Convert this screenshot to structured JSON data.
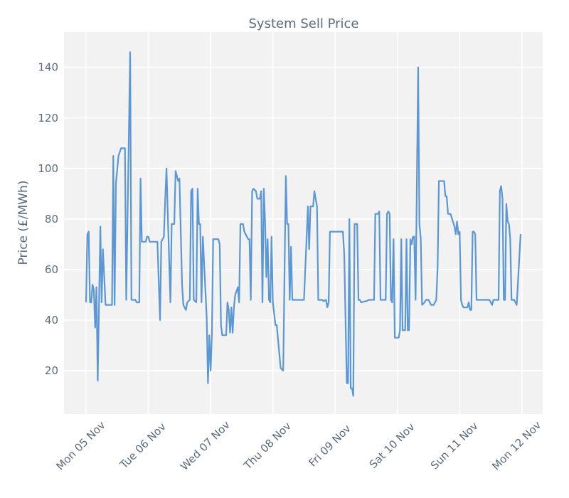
{
  "chart_data": {
    "type": "line",
    "title": "System Sell Price",
    "xlabel": "",
    "ylabel": "Price (£/MWh)",
    "ylim": [
      2.8,
      154
    ],
    "xlim": [
      "04 Nov 15:30",
      "12 Nov 08:00"
    ],
    "grid": true,
    "legend": "none",
    "colors": {
      "line": "#5b97d5",
      "plot_bg": "#f2f2f2",
      "grid": "#ffffff",
      "text": "#5a6b7d"
    },
    "yticks": [
      20,
      40,
      60,
      80,
      100,
      120,
      140
    ],
    "xticks": [
      {
        "t": "05 Nov 00:00",
        "label": "Mon 05 Nov"
      },
      {
        "t": "06 Nov 00:00",
        "label": "Tue 06 Nov"
      },
      {
        "t": "07 Nov 00:00",
        "label": "Wed 07 Nov"
      },
      {
        "t": "08 Nov 00:00",
        "label": "Thu 08 Nov"
      },
      {
        "t": "09 Nov 00:00",
        "label": "Fri 09 Nov"
      },
      {
        "t": "10 Nov 00:00",
        "label": "Sat 10 Nov"
      },
      {
        "t": "11 Nov 00:00",
        "label": "Sun 11 Nov"
      },
      {
        "t": "12 Nov 00:00",
        "label": "Mon 12 Nov"
      }
    ],
    "series": [
      {
        "points": [
          [
            "05 Nov 00:00",
            47
          ],
          [
            "05 Nov 00:30",
            74
          ],
          [
            "05 Nov 01:00",
            75
          ],
          [
            "05 Nov 01:30",
            47
          ],
          [
            "05 Nov 02:00",
            47
          ],
          [
            "05 Nov 02:30",
            54
          ],
          [
            "05 Nov 03:00",
            52
          ],
          [
            "05 Nov 03:30",
            37
          ],
          [
            "05 Nov 04:00",
            53
          ],
          [
            "05 Nov 04:30",
            16
          ],
          [
            "05 Nov 05:30",
            77
          ],
          [
            "05 Nov 06:00",
            47
          ],
          [
            "05 Nov 06:30",
            68
          ],
          [
            "05 Nov 07:30",
            46
          ],
          [
            "05 Nov 10:00",
            46
          ],
          [
            "05 Nov 10:30",
            105
          ],
          [
            "05 Nov 11:00",
            46
          ],
          [
            "05 Nov 11:30",
            94
          ],
          [
            "05 Nov 12:30",
            105
          ],
          [
            "05 Nov 13:30",
            108
          ],
          [
            "05 Nov 15:00",
            108
          ],
          [
            "05 Nov 15:30",
            48
          ],
          [
            "05 Nov 17:00",
            146
          ],
          [
            "05 Nov 17:30",
            48
          ],
          [
            "05 Nov 19:00",
            48
          ],
          [
            "05 Nov 19:30",
            47
          ],
          [
            "05 Nov 20:30",
            47
          ],
          [
            "05 Nov 21:00",
            96
          ],
          [
            "05 Nov 21:30",
            71
          ],
          [
            "05 Nov 23:00",
            71
          ],
          [
            "05 Nov 23:30",
            73
          ],
          [
            "06 Nov 00:00",
            73
          ],
          [
            "06 Nov 00:30",
            71
          ],
          [
            "06 Nov 03:30",
            71
          ],
          [
            "06 Nov 04:30",
            40
          ],
          [
            "06 Nov 05:00",
            71
          ],
          [
            "06 Nov 06:00",
            73
          ],
          [
            "06 Nov 06:30",
            88
          ],
          [
            "06 Nov 07:00",
            100
          ],
          [
            "06 Nov 07:30",
            82
          ],
          [
            "06 Nov 08:30",
            47
          ],
          [
            "06 Nov 09:00",
            78
          ],
          [
            "06 Nov 10:00",
            78
          ],
          [
            "06 Nov 10:30",
            99
          ],
          [
            "06 Nov 11:30",
            95
          ],
          [
            "06 Nov 12:00",
            96
          ],
          [
            "06 Nov 13:00",
            54
          ],
          [
            "06 Nov 13:30",
            46
          ],
          [
            "06 Nov 14:30",
            44
          ],
          [
            "06 Nov 15:00",
            47
          ],
          [
            "06 Nov 16:00",
            48
          ],
          [
            "06 Nov 16:30",
            91
          ],
          [
            "06 Nov 17:00",
            92
          ],
          [
            "06 Nov 17:30",
            48
          ],
          [
            "06 Nov 18:30",
            47
          ],
          [
            "06 Nov 19:00",
            92
          ],
          [
            "06 Nov 19:30",
            78
          ],
          [
            "06 Nov 20:00",
            78
          ],
          [
            "06 Nov 20:30",
            47
          ],
          [
            "06 Nov 21:00",
            73
          ],
          [
            "06 Nov 22:30",
            41
          ],
          [
            "06 Nov 23:00",
            15
          ],
          [
            "06 Nov 23:30",
            34
          ],
          [
            "07 Nov 00:00",
            20
          ],
          [
            "07 Nov 00:30",
            34
          ],
          [
            "07 Nov 01:00",
            72
          ],
          [
            "07 Nov 03:00",
            72
          ],
          [
            "07 Nov 03:30",
            70
          ],
          [
            "07 Nov 04:00",
            38
          ],
          [
            "07 Nov 04:30",
            34
          ],
          [
            "07 Nov 06:00",
            34
          ],
          [
            "07 Nov 06:30",
            47
          ],
          [
            "07 Nov 07:00",
            44
          ],
          [
            "07 Nov 07:30",
            35
          ],
          [
            "07 Nov 08:00",
            45
          ],
          [
            "07 Nov 08:30",
            35
          ],
          [
            "07 Nov 09:00",
            45
          ],
          [
            "07 Nov 09:30",
            50
          ],
          [
            "07 Nov 10:30",
            53
          ],
          [
            "07 Nov 11:00",
            47
          ],
          [
            "07 Nov 11:30",
            78
          ],
          [
            "07 Nov 12:30",
            78
          ],
          [
            "07 Nov 13:00",
            75
          ],
          [
            "07 Nov 14:30",
            72
          ],
          [
            "07 Nov 15:00",
            72
          ],
          [
            "07 Nov 15:30",
            48
          ],
          [
            "07 Nov 16:00",
            91
          ],
          [
            "07 Nov 16:30",
            92
          ],
          [
            "07 Nov 17:30",
            91
          ],
          [
            "07 Nov 18:00",
            88
          ],
          [
            "07 Nov 19:00",
            88
          ],
          [
            "07 Nov 19:30",
            91
          ],
          [
            "07 Nov 20:00",
            47
          ],
          [
            "07 Nov 20:30",
            92
          ],
          [
            "07 Nov 21:00",
            79
          ],
          [
            "07 Nov 21:30",
            57
          ],
          [
            "07 Nov 22:00",
            72
          ],
          [
            "07 Nov 22:30",
            48
          ],
          [
            "07 Nov 23:00",
            47
          ],
          [
            "07 Nov 23:30",
            73
          ],
          [
            "08 Nov 00:00",
            47
          ],
          [
            "08 Nov 01:00",
            38
          ],
          [
            "08 Nov 01:30",
            38
          ],
          [
            "08 Nov 03:00",
            21
          ],
          [
            "08 Nov 04:00",
            20
          ],
          [
            "08 Nov 04:30",
            60
          ],
          [
            "08 Nov 05:00",
            97
          ],
          [
            "08 Nov 05:30",
            78
          ],
          [
            "08 Nov 06:00",
            78
          ],
          [
            "08 Nov 06:30",
            48
          ],
          [
            "08 Nov 07:00",
            69
          ],
          [
            "08 Nov 07:30",
            48
          ],
          [
            "08 Nov 09:00",
            48
          ],
          [
            "08 Nov 11:00",
            48
          ],
          [
            "08 Nov 12:00",
            48
          ],
          [
            "08 Nov 12:30",
            60
          ],
          [
            "08 Nov 13:30",
            85
          ],
          [
            "08 Nov 14:00",
            68
          ],
          [
            "08 Nov 14:30",
            85
          ],
          [
            "08 Nov 15:30",
            85
          ],
          [
            "08 Nov 16:00",
            91
          ],
          [
            "08 Nov 17:00",
            85
          ],
          [
            "08 Nov 17:30",
            48
          ],
          [
            "08 Nov 19:00",
            48
          ],
          [
            "08 Nov 19:30",
            47.5
          ],
          [
            "08 Nov 20:30",
            48
          ],
          [
            "08 Nov 21:00",
            45
          ],
          [
            "08 Nov 21:30",
            47
          ],
          [
            "08 Nov 22:00",
            75
          ],
          [
            "09 Nov 03:00",
            75
          ],
          [
            "09 Nov 03:30",
            66
          ],
          [
            "09 Nov 04:30",
            15
          ],
          [
            "09 Nov 05:00",
            15
          ],
          [
            "09 Nov 05:30",
            80
          ],
          [
            "09 Nov 06:00",
            13
          ],
          [
            "09 Nov 06:30",
            13
          ],
          [
            "09 Nov 07:00",
            10
          ],
          [
            "09 Nov 07:30",
            78
          ],
          [
            "09 Nov 08:30",
            78
          ],
          [
            "09 Nov 09:00",
            48
          ],
          [
            "09 Nov 09:30",
            48
          ],
          [
            "09 Nov 10:00",
            47
          ],
          [
            "09 Nov 12:00",
            47.5
          ],
          [
            "09 Nov 13:00",
            48
          ],
          [
            "09 Nov 15:00",
            48
          ],
          [
            "09 Nov 15:30",
            82
          ],
          [
            "09 Nov 16:30",
            82
          ],
          [
            "09 Nov 17:00",
            83
          ],
          [
            "09 Nov 17:30",
            48
          ],
          [
            "09 Nov 19:30",
            48
          ],
          [
            "09 Nov 20:00",
            82
          ],
          [
            "09 Nov 20:30",
            83
          ],
          [
            "09 Nov 21:00",
            82
          ],
          [
            "09 Nov 21:30",
            48
          ],
          [
            "09 Nov 22:00",
            47
          ],
          [
            "09 Nov 22:30",
            72
          ],
          [
            "09 Nov 23:00",
            33
          ],
          [
            "10 Nov 00:30",
            33
          ],
          [
            "10 Nov 01:00",
            36
          ],
          [
            "10 Nov 01:30",
            72
          ],
          [
            "10 Nov 02:00",
            36
          ],
          [
            "10 Nov 03:00",
            36
          ],
          [
            "10 Nov 03:30",
            72
          ],
          [
            "10 Nov 04:00",
            36
          ],
          [
            "10 Nov 04:30",
            36
          ],
          [
            "10 Nov 05:00",
            72
          ],
          [
            "10 Nov 05:30",
            70
          ],
          [
            "10 Nov 06:00",
            73
          ],
          [
            "10 Nov 06:30",
            73
          ],
          [
            "10 Nov 07:00",
            48
          ],
          [
            "10 Nov 08:00",
            140
          ],
          [
            "10 Nov 08:30",
            78
          ],
          [
            "10 Nov 09:00",
            72
          ],
          [
            "10 Nov 09:30",
            46
          ],
          [
            "10 Nov 10:30",
            47
          ],
          [
            "10 Nov 11:00",
            48
          ],
          [
            "10 Nov 12:00",
            48
          ],
          [
            "10 Nov 13:00",
            46
          ],
          [
            "10 Nov 14:00",
            46
          ],
          [
            "10 Nov 15:00",
            48
          ],
          [
            "10 Nov 15:30",
            61
          ],
          [
            "10 Nov 16:00",
            95
          ],
          [
            "10 Nov 18:00",
            95
          ],
          [
            "10 Nov 18:30",
            89
          ],
          [
            "10 Nov 19:00",
            89
          ],
          [
            "10 Nov 19:30",
            82
          ],
          [
            "10 Nov 20:30",
            82
          ],
          [
            "10 Nov 22:00",
            77
          ],
          [
            "10 Nov 22:30",
            74
          ],
          [
            "10 Nov 23:00",
            79
          ],
          [
            "10 Nov 23:30",
            74
          ],
          [
            "11 Nov 00:00",
            75
          ],
          [
            "11 Nov 00:30",
            48
          ],
          [
            "11 Nov 01:00",
            46
          ],
          [
            "11 Nov 01:30",
            45
          ],
          [
            "11 Nov 03:00",
            45
          ],
          [
            "11 Nov 03:30",
            47
          ],
          [
            "11 Nov 04:00",
            44
          ],
          [
            "11 Nov 04:30",
            44
          ],
          [
            "11 Nov 05:00",
            75
          ],
          [
            "11 Nov 05:30",
            75
          ],
          [
            "11 Nov 06:00",
            74
          ],
          [
            "11 Nov 06:30",
            48
          ],
          [
            "11 Nov 07:00",
            48
          ],
          [
            "11 Nov 11:30",
            48
          ],
          [
            "11 Nov 12:30",
            46
          ],
          [
            "11 Nov 13:00",
            48
          ],
          [
            "11 Nov 14:00",
            48
          ],
          [
            "11 Nov 15:00",
            48
          ],
          [
            "11 Nov 15:30",
            91
          ],
          [
            "11 Nov 16:00",
            93
          ],
          [
            "11 Nov 16:30",
            88
          ],
          [
            "11 Nov 17:00",
            48
          ],
          [
            "11 Nov 17:30",
            48
          ],
          [
            "11 Nov 18:00",
            86
          ],
          [
            "11 Nov 18:30",
            79
          ],
          [
            "11 Nov 19:00",
            78
          ],
          [
            "11 Nov 19:30",
            72
          ],
          [
            "11 Nov 20:00",
            48
          ],
          [
            "11 Nov 21:00",
            48
          ],
          [
            "11 Nov 21:30",
            47
          ],
          [
            "11 Nov 22:00",
            46
          ],
          [
            "11 Nov 23:30",
            74
          ]
        ]
      }
    ]
  }
}
